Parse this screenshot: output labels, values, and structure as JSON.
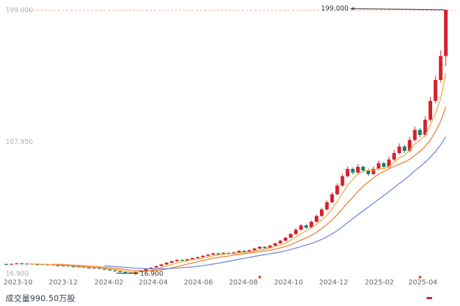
{
  "page": {
    "background": "#ffffff"
  },
  "volume": {
    "label": "成交量990.50万股"
  },
  "chart_data": {
    "type": "candlestick",
    "interval": "weekly",
    "start_date": "2023-09-15",
    "interval_days": 7,
    "price_axis": {
      "min": 16.9,
      "max": 199.0,
      "labels": [
        {
          "text": "199.000",
          "price": 199.0
        },
        {
          "text": "107.950",
          "price": 107.95
        },
        {
          "text": "16.900",
          "price": 16.9
        }
      ]
    },
    "x_ticks": [
      "2023-10",
      "2023-12",
      "2024-02",
      "2024-04",
      "2024-06",
      "2024-08",
      "2024-10",
      "2024-12",
      "2025-02",
      "2025-04"
    ],
    "candles": [
      [
        23.3,
        23.1,
        22.8,
        23.6
      ],
      [
        23.1,
        23.4,
        22.9,
        23.7
      ],
      [
        23.4,
        23.8,
        23.1,
        24.1
      ],
      [
        23.8,
        23.2,
        23.0,
        24.0
      ],
      [
        23.2,
        23.6,
        23.0,
        23.9
      ],
      [
        23.6,
        23.0,
        22.7,
        23.8
      ],
      [
        23.0,
        23.3,
        22.8,
        23.6
      ],
      [
        23.3,
        22.7,
        22.4,
        23.5
      ],
      [
        22.7,
        23.0,
        22.5,
        23.3
      ],
      [
        23.0,
        22.4,
        22.1,
        23.2
      ],
      [
        22.4,
        22.0,
        21.7,
        22.6
      ],
      [
        22.0,
        22.3,
        21.8,
        22.6
      ],
      [
        22.3,
        21.7,
        21.4,
        22.5
      ],
      [
        21.7,
        21.3,
        21.0,
        21.9
      ],
      [
        21.3,
        21.6,
        21.1,
        21.9
      ],
      [
        21.6,
        20.9,
        20.6,
        21.8
      ],
      [
        20.9,
        20.4,
        20.1,
        21.1
      ],
      [
        20.4,
        20.8,
        20.2,
        21.1
      ],
      [
        20.8,
        20.0,
        19.7,
        21.0
      ],
      [
        20.0,
        19.5,
        19.2,
        20.2
      ],
      [
        19.5,
        18.9,
        18.6,
        19.7
      ],
      [
        18.9,
        18.3,
        18.0,
        19.1
      ],
      [
        18.3,
        17.8,
        17.5,
        18.5
      ],
      [
        17.8,
        17.4,
        17.1,
        18.0
      ],
      [
        17.4,
        17.2,
        16.9,
        17.7
      ],
      [
        17.2,
        18.0,
        17.0,
        18.3
      ],
      [
        18.0,
        18.9,
        17.8,
        19.2
      ],
      [
        18.9,
        19.8,
        18.7,
        20.1
      ],
      [
        19.8,
        20.8,
        19.6,
        21.1
      ],
      [
        20.8,
        21.9,
        20.6,
        22.2
      ],
      [
        21.9,
        23.0,
        21.7,
        23.4
      ],
      [
        23.0,
        24.2,
        22.8,
        24.6
      ],
      [
        24.2,
        25.3,
        24.0,
        25.7
      ],
      [
        25.3,
        26.2,
        25.0,
        26.6
      ],
      [
        26.2,
        25.6,
        25.2,
        26.5
      ],
      [
        25.6,
        26.6,
        25.4,
        27.0
      ],
      [
        26.6,
        27.4,
        26.3,
        27.8
      ],
      [
        27.4,
        28.1,
        27.1,
        28.5
      ],
      [
        28.1,
        29.0,
        27.8,
        29.4
      ],
      [
        29.0,
        29.8,
        28.7,
        30.2
      ],
      [
        29.8,
        30.7,
        29.5,
        31.1
      ],
      [
        30.7,
        30.0,
        29.6,
        31.0
      ],
      [
        30.0,
        31.0,
        29.7,
        31.4
      ],
      [
        31.0,
        30.3,
        29.9,
        31.3
      ],
      [
        30.3,
        31.4,
        30.0,
        31.8
      ],
      [
        31.4,
        32.4,
        31.1,
        32.9
      ],
      [
        32.4,
        31.6,
        31.2,
        32.7
      ],
      [
        31.6,
        32.8,
        31.3,
        33.3
      ],
      [
        32.8,
        34.0,
        32.5,
        34.5
      ],
      [
        34.0,
        35.2,
        33.7,
        35.7
      ],
      [
        35.2,
        34.3,
        33.9,
        35.5
      ],
      [
        34.3,
        36.0,
        34.0,
        36.5
      ],
      [
        36.0,
        37.6,
        35.7,
        38.2
      ],
      [
        37.6,
        39.4,
        37.3,
        40.0
      ],
      [
        39.4,
        41.5,
        39.1,
        42.2
      ],
      [
        41.5,
        44.0,
        41.2,
        44.8
      ],
      [
        44.0,
        47.0,
        43.6,
        47.9
      ],
      [
        47.0,
        50.0,
        46.5,
        51.0
      ],
      [
        50.0,
        48.5,
        47.6,
        50.8
      ],
      [
        48.5,
        52.5,
        48.1,
        53.4
      ],
      [
        52.5,
        56.5,
        52.0,
        57.5
      ],
      [
        56.5,
        61.0,
        56.0,
        62.2
      ],
      [
        61.0,
        66.0,
        60.4,
        67.3
      ],
      [
        66.0,
        71.5,
        65.3,
        72.9
      ],
      [
        71.5,
        77.5,
        70.8,
        79.0
      ],
      [
        77.5,
        84.0,
        76.7,
        85.6
      ],
      [
        84.0,
        89.0,
        83.1,
        90.8
      ],
      [
        89.0,
        86.5,
        85.2,
        90.2
      ],
      [
        86.5,
        90.5,
        85.6,
        92.3
      ],
      [
        90.5,
        88.0,
        86.7,
        91.6
      ],
      [
        88.0,
        85.5,
        84.2,
        89.1
      ],
      [
        85.5,
        89.0,
        84.6,
        90.7
      ],
      [
        89.0,
        93.0,
        88.1,
        94.8
      ],
      [
        93.0,
        90.5,
        89.1,
        94.1
      ],
      [
        90.5,
        95.5,
        89.6,
        97.4
      ],
      [
        95.5,
        100.0,
        94.5,
        102.0
      ],
      [
        100.0,
        104.5,
        99.0,
        106.6
      ],
      [
        104.5,
        101.5,
        100.0,
        105.7
      ],
      [
        101.5,
        109.0,
        100.4,
        111.2
      ],
      [
        109.0,
        116.0,
        107.8,
        118.3
      ],
      [
        116.0,
        112.5,
        110.8,
        117.3
      ],
      [
        112.5,
        123.0,
        111.2,
        125.5
      ],
      [
        123.0,
        136.0,
        121.6,
        138.7
      ],
      [
        136.0,
        150.5,
        134.4,
        153.5
      ],
      [
        150.5,
        167.0,
        148.7,
        171.0
      ],
      [
        167.0,
        199.0,
        160.0,
        199.0
      ]
    ],
    "moving_averages": [
      {
        "period": 5,
        "color": "#f2a93c"
      },
      {
        "period": 10,
        "color": "#ee7d31"
      },
      {
        "period": 20,
        "color": "#6f86db"
      }
    ],
    "annotations": {
      "max_label": "199.000",
      "max_index": 85,
      "min_label": "16.900",
      "min_index": 24
    },
    "event_marker_indices": [
      49,
      80
    ],
    "colors": {
      "up": "#d6202c",
      "down": "#108066",
      "dashed_max_line": "#eba9a2",
      "annotation_line": "#4a4a4a",
      "annotation_text": "#333333",
      "axis_label": "#b0b0b0",
      "tick_label": "#666666",
      "event_marker": "#e8502e"
    }
  }
}
